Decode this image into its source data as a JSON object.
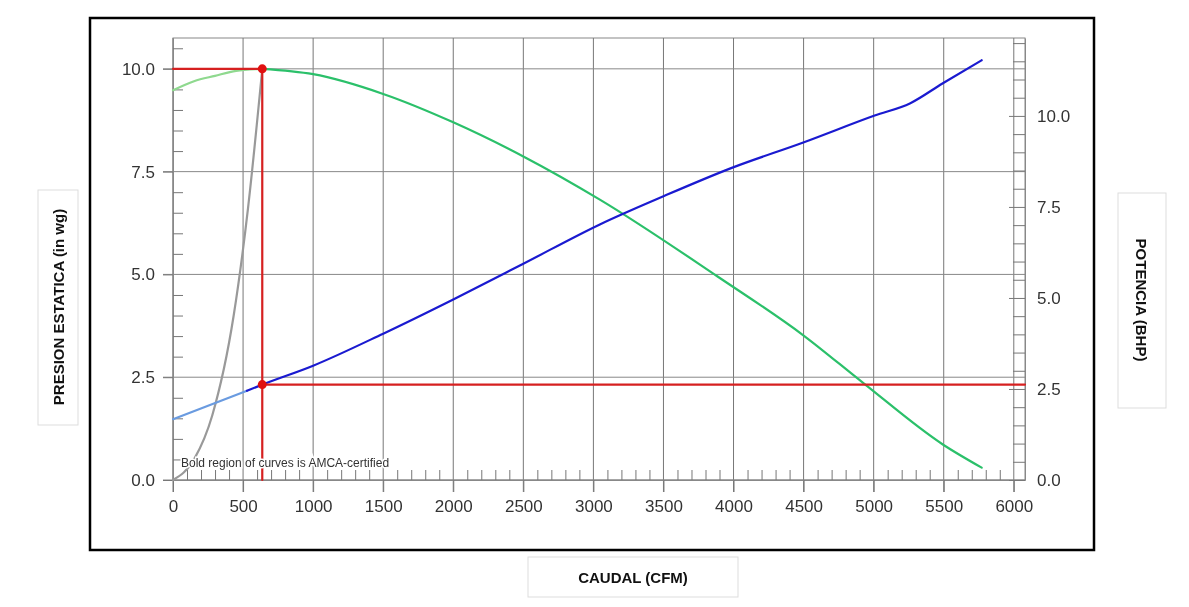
{
  "chart_data": {
    "type": "line",
    "xlabel": "CAUDAL (CFM)",
    "ylabel": "PRESION ESTATICA (in wg)",
    "y2label": "POTENCIA (BHP)",
    "xlim": [
      0,
      6080
    ],
    "ylim": [
      0,
      10.75
    ],
    "y2lim": [
      0,
      12.14
    ],
    "xticks": [
      0,
      {
        "value": 100,
        "label": null
      },
      {
        "value": 200,
        "label": null
      },
      {
        "value": 300,
        "label": null
      },
      {
        "value": 400,
        "label": null
      },
      500,
      {
        "value": 600,
        "label": null
      },
      {
        "value": 700,
        "label": null
      },
      {
        "value": 800,
        "label": null
      },
      {
        "value": 900,
        "label": null
      },
      1000,
      {
        "value": 1100,
        "label": null
      },
      {
        "value": 1200,
        "label": null
      },
      {
        "value": 1300,
        "label": null
      },
      {
        "value": 1400,
        "label": null
      },
      1500,
      {
        "value": 1600,
        "label": null
      },
      {
        "value": 1700,
        "label": null
      },
      {
        "value": 1800,
        "label": null
      },
      {
        "value": 1900,
        "label": null
      },
      2000,
      {
        "value": 2100,
        "label": null
      },
      {
        "value": 2200,
        "label": null
      },
      {
        "value": 2300,
        "label": null
      },
      {
        "value": 2400,
        "label": null
      },
      2500,
      {
        "value": 2600,
        "label": null
      },
      {
        "value": 2700,
        "label": null
      },
      {
        "value": 2800,
        "label": null
      },
      {
        "value": 2900,
        "label": null
      },
      3000,
      {
        "value": 3100,
        "label": null
      },
      {
        "value": 3200,
        "label": null
      },
      {
        "value": 3300,
        "label": null
      },
      {
        "value": 3400,
        "label": null
      },
      3500,
      {
        "value": 3600,
        "label": null
      },
      {
        "value": 3700,
        "label": null
      },
      {
        "value": 3800,
        "label": null
      },
      {
        "value": 3900,
        "label": null
      },
      4000,
      {
        "value": 4100,
        "label": null
      },
      {
        "value": 4200,
        "label": null
      },
      {
        "value": 4300,
        "label": null
      },
      {
        "value": 4400,
        "label": null
      },
      4500,
      {
        "value": 4600,
        "label": null
      },
      {
        "value": 4700,
        "label": null
      },
      {
        "value": 4800,
        "label": null
      },
      {
        "value": 4900,
        "label": null
      },
      5000,
      {
        "value": 5100,
        "label": null
      },
      {
        "value": 5200,
        "label": null
      },
      {
        "value": 5300,
        "label": null
      },
      {
        "value": 5400,
        "label": null
      },
      5500,
      {
        "value": 5600,
        "label": null
      },
      {
        "value": 5700,
        "label": null
      },
      {
        "value": 5800,
        "label": null
      },
      {
        "value": 5900,
        "label": null
      },
      6000
    ],
    "yticks": [
      {
        "value": 0,
        "label": "0.0"
      },
      {
        "value": 0.5,
        "label": null
      },
      {
        "value": 1,
        "label": null
      },
      {
        "value": 1.5,
        "label": null
      },
      {
        "value": 2,
        "label": null
      },
      2.5,
      {
        "value": 3,
        "label": null
      },
      {
        "value": 3.5,
        "label": null
      },
      {
        "value": 4,
        "label": null
      },
      {
        "value": 4.5,
        "label": null
      },
      {
        "value": 5,
        "label": "5.0"
      },
      {
        "value": 5.5,
        "label": null
      },
      {
        "value": 6,
        "label": null
      },
      {
        "value": 6.5,
        "label": null
      },
      {
        "value": 7,
        "label": null
      },
      7.5,
      {
        "value": 8,
        "label": null
      },
      {
        "value": 8.5,
        "label": null
      },
      {
        "value": 9,
        "label": null
      },
      {
        "value": 9.5,
        "label": null
      },
      {
        "value": 10,
        "label": "10.0"
      },
      {
        "value": 10.5,
        "label": null
      }
    ],
    "y2ticks": [
      {
        "value": 0,
        "label": "0.0"
      },
      {
        "value": 0.5,
        "label": null
      },
      {
        "value": 1,
        "label": null
      },
      {
        "value": 1.5,
        "label": null
      },
      {
        "value": 2,
        "label": null
      },
      2.5,
      {
        "value": 3,
        "label": null
      },
      {
        "value": 3.5,
        "label": null
      },
      {
        "value": 4,
        "label": null
      },
      {
        "value": 4.5,
        "label": null
      },
      {
        "value": 5,
        "label": "5.0"
      },
      {
        "value": 5.5,
        "label": null
      },
      {
        "value": 6,
        "label": null
      },
      {
        "value": 6.5,
        "label": null
      },
      {
        "value": 7,
        "label": null
      },
      7.5,
      {
        "value": 8,
        "label": null
      },
      {
        "value": 8.5,
        "label": null
      },
      {
        "value": 9,
        "label": null
      },
      {
        "value": 9.5,
        "label": null
      },
      {
        "value": 10,
        "label": "10.0"
      },
      {
        "value": 10.5,
        "label": null
      },
      {
        "value": 11,
        "label": null
      },
      {
        "value": 11.5,
        "label": null
      },
      {
        "value": 12,
        "label": null
      }
    ],
    "grid": true,
    "annotations": [
      "Bold region of curves is AMCA-certified"
    ],
    "series": [
      {
        "color": "#8fd98f",
        "x": [
          0,
          150,
          300,
          450,
          637
        ],
        "values": [
          9.48,
          9.7,
          9.83,
          9.95,
          10.0
        ]
      },
      {
        "color": "#2bc06a",
        "x": [
          637,
          1000,
          1500,
          2000,
          2500,
          3046,
          3886,
          4498,
          4929,
          5491,
          5771
        ],
        "values": [
          10.0,
          9.87,
          9.39,
          8.7,
          7.87,
          6.82,
          4.95,
          3.52,
          2.35,
          0.87,
          0.3
        ]
      },
      {
        "color": "#999999",
        "x": [
          0,
          153,
          280,
          433,
          535,
          637
        ],
        "values": [
          0,
          0.52,
          1.57,
          4.0,
          6.6,
          10.0
        ]
      },
      {
        "color": "#6a9be0",
        "axis": "y2",
        "x": [
          0,
          528
        ],
        "values": [
          1.67,
          2.45
        ]
      },
      {
        "color": "#1a1ad0",
        "axis": "y2",
        "x": [
          528,
          637,
          1000,
          1500,
          2000,
          2500,
          3046,
          3504,
          3992,
          4498,
          5007,
          5262,
          5491,
          5771
        ],
        "values": [
          2.45,
          2.62,
          3.14,
          4.02,
          4.96,
          5.94,
          7.02,
          7.8,
          8.58,
          9.27,
          10.01,
          10.35,
          10.89,
          11.53
        ]
      },
      {
        "color": "#d62020",
        "x": [
          0,
          637
        ],
        "values": [
          10.0,
          10.0
        ]
      },
      {
        "color": "#d62020",
        "x": [
          637,
          637
        ],
        "values": [
          0,
          10.0
        ]
      },
      {
        "color": "#d62020",
        "axis": "y2",
        "x": [
          637,
          6080
        ],
        "values": [
          2.62,
          2.62
        ]
      },
      {
        "type": "scatter",
        "marker": "circle",
        "color": "#e01010",
        "x": [
          637
        ],
        "values": [
          10.0
        ]
      },
      {
        "type": "scatter",
        "marker": "circle",
        "color": "#e01010",
        "axis": "y2",
        "x": [
          637
        ],
        "values": [
          2.62
        ]
      }
    ]
  }
}
